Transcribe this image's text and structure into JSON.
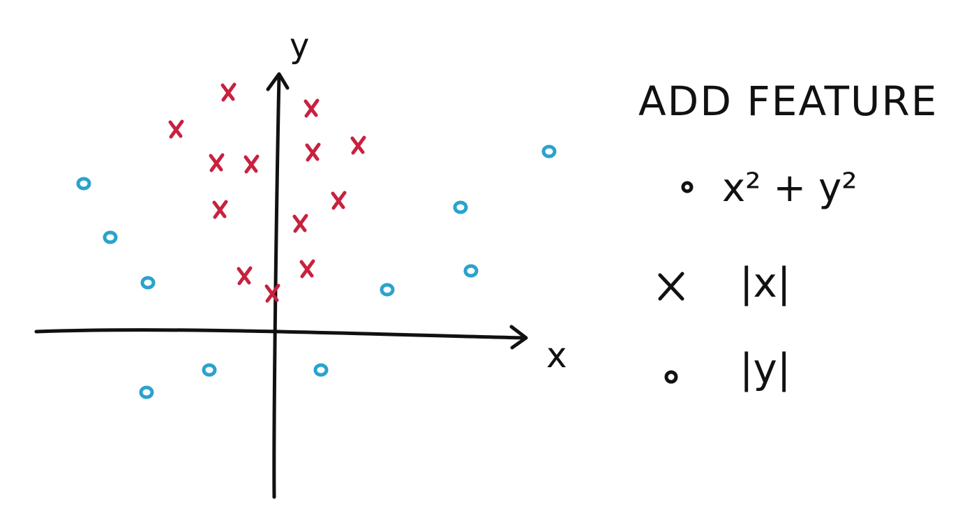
{
  "diagram": {
    "axes": {
      "y_label": "y",
      "x_label": "x"
    },
    "title": "ADD FEATURE",
    "options": [
      {
        "label": "x² + y²"
      },
      {
        "label": "|x|"
      },
      {
        "label": "|y|"
      }
    ]
  }
}
